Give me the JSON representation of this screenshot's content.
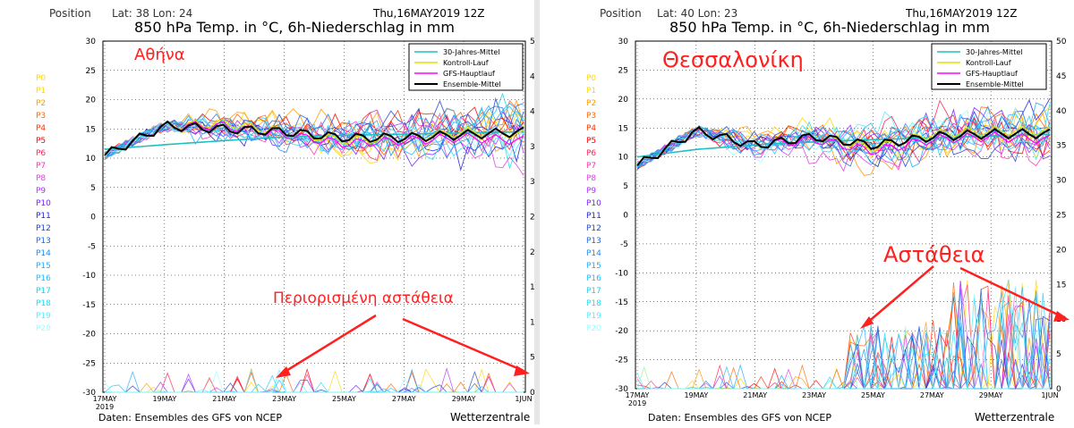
{
  "legend_labels": [
    "30-Jahres-Mittel",
    "Kontroll-Lauf",
    "GFS-Hauptlauf",
    "Ensemble-Mittel"
  ],
  "legend_colors": [
    "#20c0c0",
    "#e0e000",
    "#ff00ff",
    "#000000"
  ],
  "member_labels": [
    "P0",
    "P1",
    "P2",
    "P3",
    "P4",
    "P5",
    "P6",
    "P7",
    "P8",
    "P9",
    "P10",
    "P11",
    "P12",
    "P13",
    "P14",
    "P15",
    "P16",
    "P17",
    "P18",
    "P19",
    "P20"
  ],
  "member_colors": [
    "#ffd700",
    "#ffd700",
    "#ff9900",
    "#ff6600",
    "#ff3300",
    "#ff0000",
    "#ff2255",
    "#ff33aa",
    "#e040e0",
    "#aa33ff",
    "#7722ff",
    "#2222dd",
    "#2244cc",
    "#2266dd",
    "#2288ee",
    "#22aaff",
    "#22bbff",
    "#22ccee",
    "#22ddee",
    "#55eeff",
    "#99ffff"
  ],
  "y_ticks": [
    30,
    25,
    20,
    15,
    10,
    5,
    0,
    -5,
    -10,
    -15,
    -20,
    -25,
    -30
  ],
  "y2_ticks": [
    50,
    45,
    40,
    35,
    30,
    25,
    20,
    15,
    10,
    5,
    0
  ],
  "x_tick_labels": [
    "17MAY",
    "19MAY",
    "21MAY",
    "23MAY",
    "25MAY",
    "27MAY",
    "29MAY",
    "1JUN"
  ],
  "x_year_label": "2019",
  "footer_left": "Daten: Ensembles des GFS von NCEP",
  "footer_right": "Wetterzentrale",
  "panels": [
    {
      "id": "athens",
      "position_label": "Position",
      "latlon": "Lat: 38  Lon: 24",
      "date": "Thu,16MAY2019 12Z",
      "title": "850 hPa Temp. in °C, 6h-Niederschlag in mm",
      "city": "Αθήνα",
      "annotation": "Περιορισμένη αστάθεια",
      "accent_color": "#ff2020"
    },
    {
      "id": "thessaloniki",
      "position_label": "Position",
      "latlon": "Lat: 40  Lon: 23",
      "date": "Thu,16MAY2019 12Z",
      "title": "850 hPa Temp. in °C, 6h-Niederschlag in mm",
      "city": "Θεσσαλονίκη",
      "annotation": "Αστάθεια",
      "accent_color": "#ff2020"
    }
  ],
  "chart_data": [
    {
      "type": "line",
      "title": "850 hPa Temp. in °C, 6h-Niederschlag in mm",
      "x": [
        "17MAY",
        "19MAY",
        "21MAY",
        "23MAY",
        "25MAY",
        "27MAY",
        "29MAY",
        "1JUN"
      ],
      "ylim": [
        -30,
        30
      ],
      "y2lim": [
        0,
        50
      ],
      "series": [
        {
          "name": "30-Jahres-Mittel",
          "values": [
            11.5,
            12.3,
            13.0,
            13.6,
            13.9,
            14.1,
            14.3,
            14.5
          ]
        },
        {
          "name": "Kontroll-Lauf",
          "values": [
            10.5,
            15.5,
            16.0,
            14.5,
            13.0,
            13.5,
            14.5,
            14.0
          ]
        },
        {
          "name": "GFS-Hauptlauf",
          "values": [
            10.5,
            15.5,
            15.5,
            14.0,
            12.5,
            13.0,
            13.5,
            13.0
          ]
        },
        {
          "name": "Ensemble-Mittel",
          "values": [
            10.5,
            15.5,
            15.0,
            14.5,
            13.5,
            13.5,
            14.0,
            14.5
          ]
        }
      ]
    },
    {
      "type": "line",
      "title": "850 hPa Temp. in °C, 6h-Niederschlag in mm",
      "x": [
        "17MAY",
        "19MAY",
        "21MAY",
        "23MAY",
        "25MAY",
        "27MAY",
        "29MAY",
        "1JUN"
      ],
      "ylim": [
        -30,
        30
      ],
      "y2lim": [
        0,
        50
      ],
      "series": [
        {
          "name": "30-Jahres-Mittel",
          "values": [
            10.0,
            11.3,
            12.1,
            12.6,
            13.0,
            13.3,
            13.6,
            13.9
          ]
        },
        {
          "name": "Kontroll-Lauf",
          "values": [
            8.5,
            14.5,
            12.0,
            13.5,
            11.5,
            14.0,
            14.5,
            14.5
          ]
        },
        {
          "name": "GFS-Hauptlauf",
          "values": [
            8.5,
            14.5,
            12.0,
            13.0,
            11.0,
            13.0,
            13.5,
            13.0
          ]
        },
        {
          "name": "Ensemble-Mittel",
          "values": [
            8.5,
            14.5,
            12.0,
            13.5,
            12.0,
            13.5,
            14.0,
            14.0
          ]
        }
      ]
    }
  ]
}
